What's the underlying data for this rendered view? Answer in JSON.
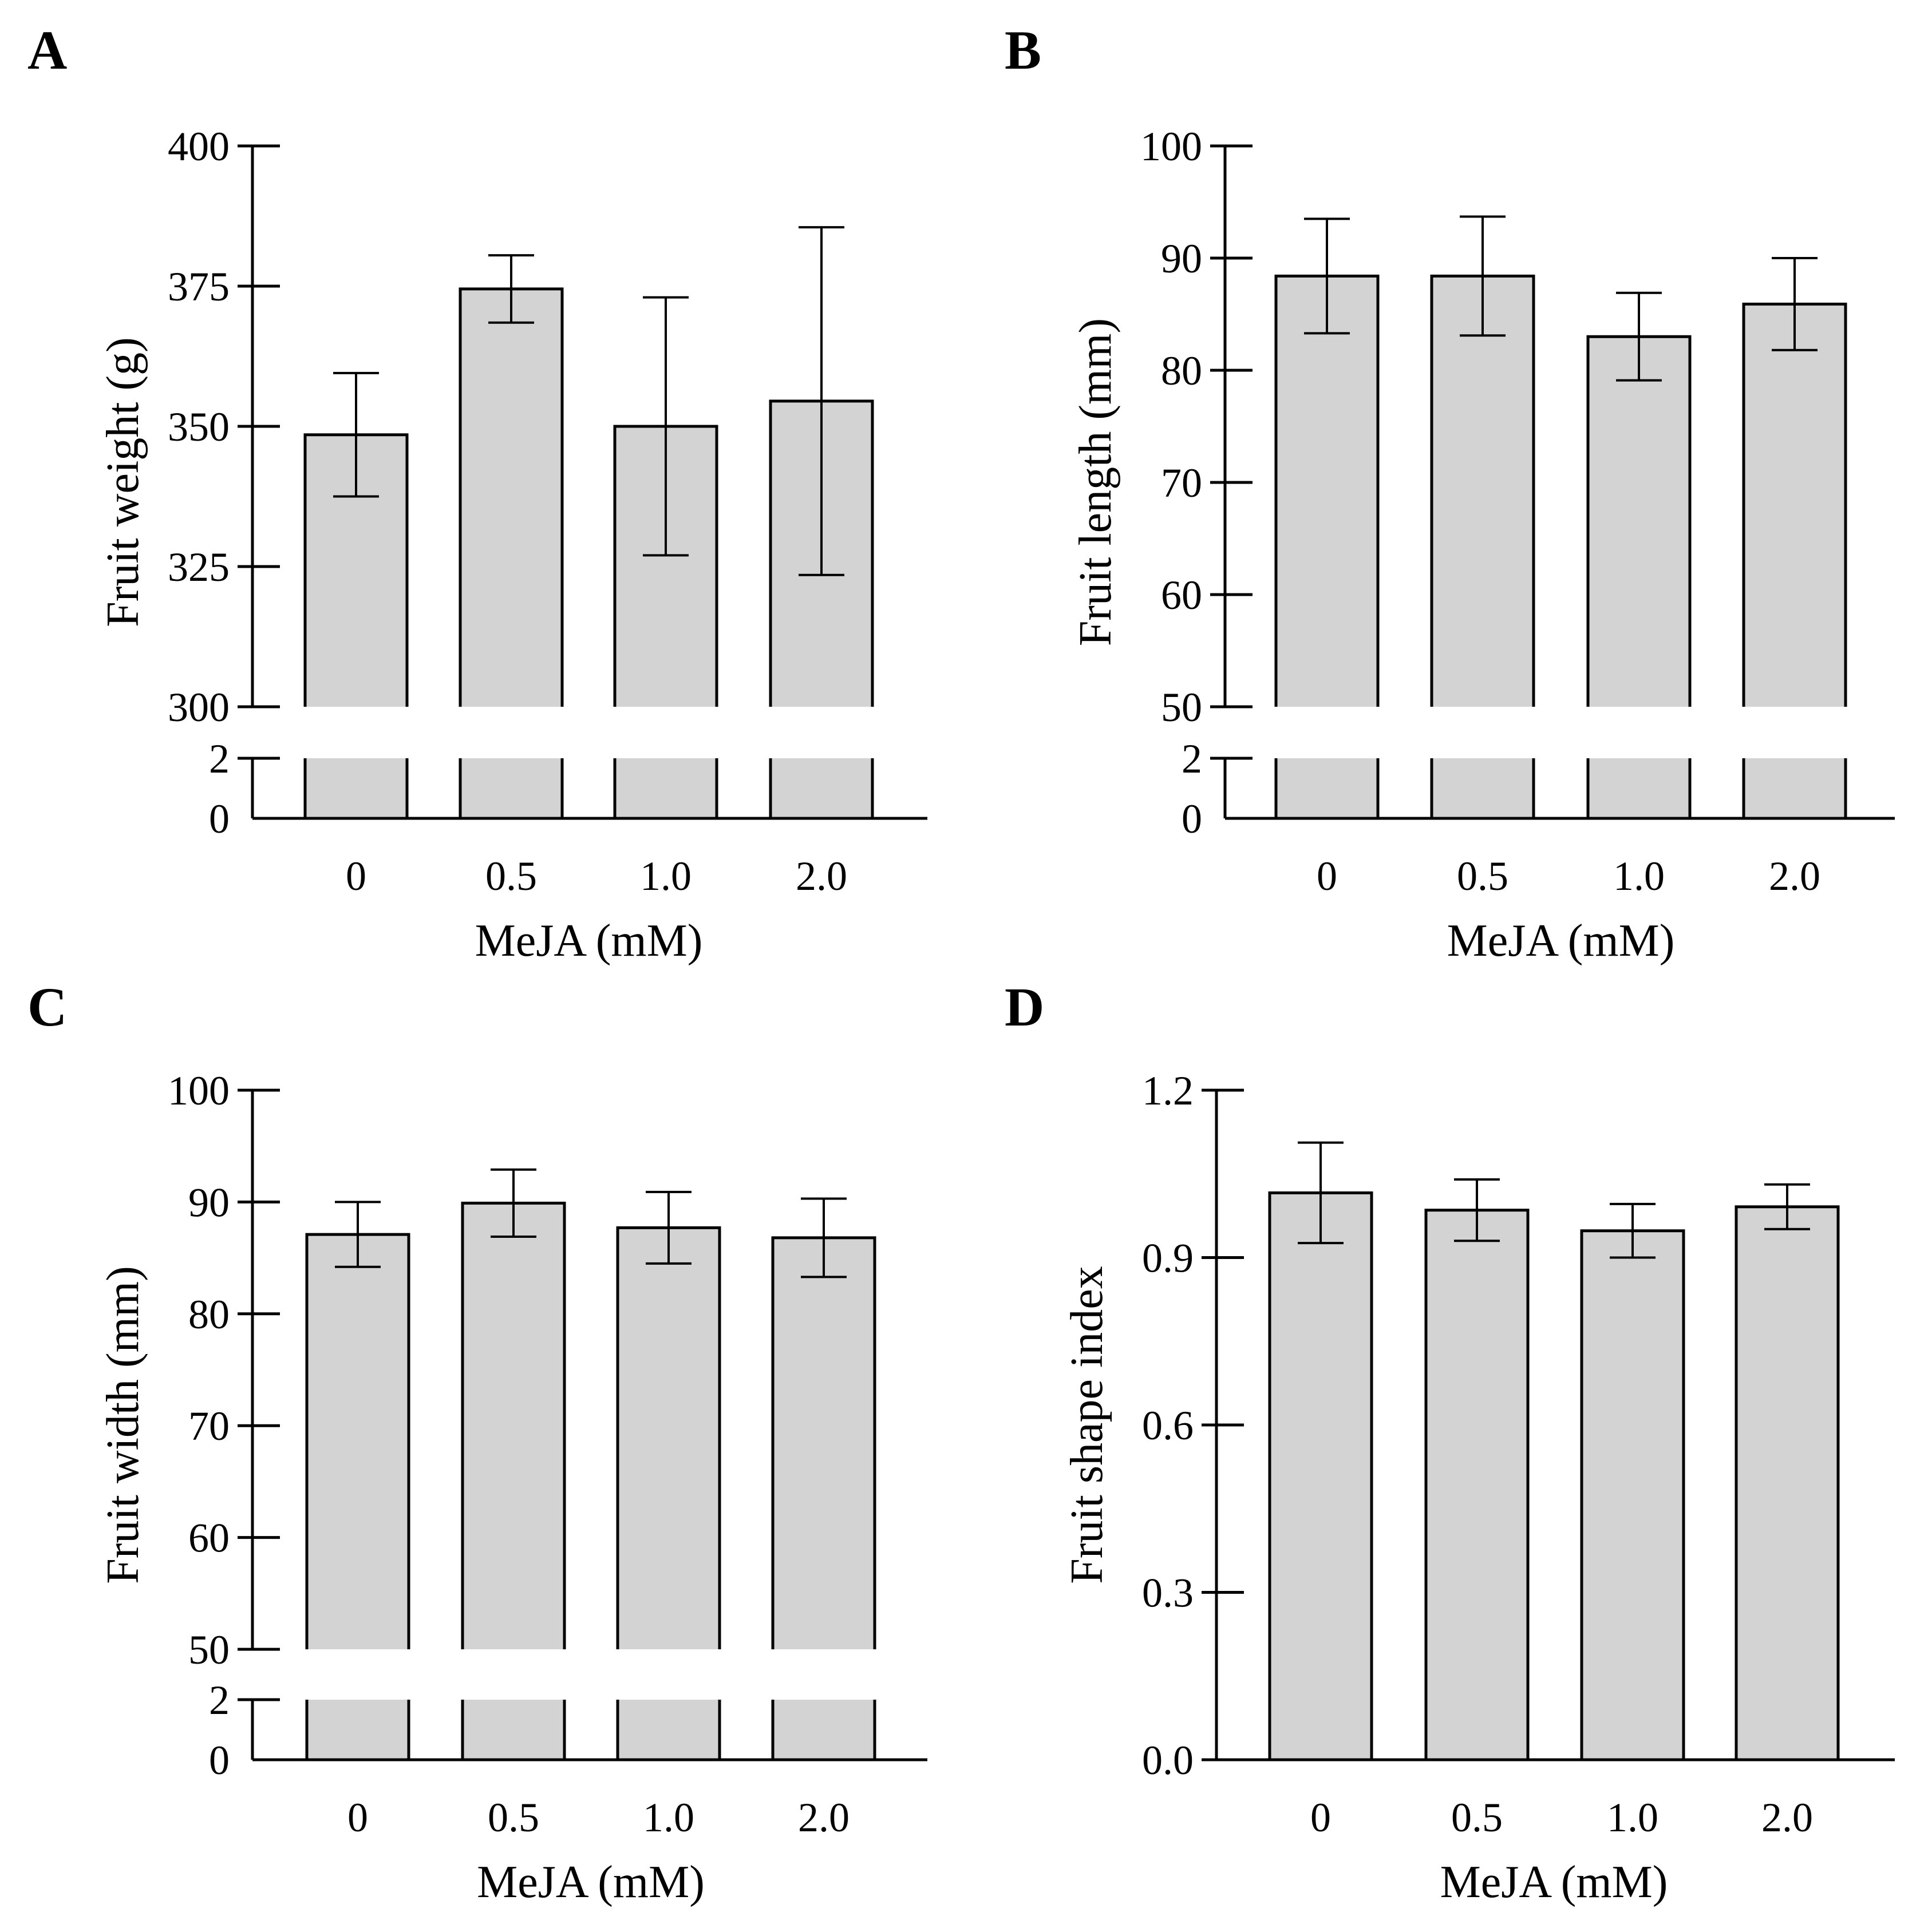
{
  "chart_data": [
    {
      "type": "bar",
      "panel_label": "A",
      "categories": [
        "0",
        "0.5",
        "1.0",
        "2.0"
      ],
      "values": [
        348.5,
        374.5,
        350.0,
        354.5
      ],
      "errors": [
        11.0,
        6.0,
        23.0,
        31.0
      ],
      "xlabel": "MeJA (mM)",
      "ylabel": "Fruit weight (g)",
      "ylim": [
        300,
        400
      ],
      "yticks": [
        "300",
        "325",
        "350",
        "375",
        "400"
      ],
      "broken_axis": true,
      "lower_ticks": [
        "0",
        "2"
      ],
      "bar_color": "#d3d3d3"
    },
    {
      "type": "bar",
      "panel_label": "B",
      "categories": [
        "0",
        "0.5",
        "1.0",
        "2.0"
      ],
      "values": [
        88.4,
        88.4,
        83.0,
        85.9
      ],
      "errors": [
        5.1,
        5.3,
        3.9,
        4.1
      ],
      "xlabel": "MeJA (mM)",
      "ylabel": "Fruit length (mm)",
      "ylim": [
        50,
        100
      ],
      "yticks": [
        "50",
        "60",
        "70",
        "80",
        "90",
        "100"
      ],
      "broken_axis": true,
      "lower_ticks": [
        "0",
        "2"
      ],
      "bar_color": "#d3d3d3"
    },
    {
      "type": "bar",
      "panel_label": "C",
      "categories": [
        "0",
        "0.5",
        "1.0",
        "2.0"
      ],
      "values": [
        87.1,
        89.9,
        87.7,
        86.8
      ],
      "errors": [
        2.9,
        3.0,
        3.2,
        3.5
      ],
      "xlabel": "MeJA (mM)",
      "ylabel": "Fruit width (mm)",
      "ylim": [
        50,
        100
      ],
      "yticks": [
        "50",
        "60",
        "70",
        "80",
        "90",
        "100"
      ],
      "broken_axis": true,
      "lower_ticks": [
        "0",
        "2"
      ],
      "bar_color": "#d3d3d3"
    },
    {
      "type": "bar",
      "panel_label": "D",
      "categories": [
        "0",
        "0.5",
        "1.0",
        "2.0"
      ],
      "values": [
        1.016,
        0.985,
        0.948,
        0.991
      ],
      "errors": [
        0.09,
        0.055,
        0.048,
        0.04
      ],
      "xlabel": "MeJA (mM)",
      "ylabel": "Fruit shape index",
      "ylim": [
        0,
        1.2
      ],
      "yticks": [
        "0.0",
        "0.3",
        "0.6",
        "0.9",
        "1.2"
      ],
      "broken_axis": false,
      "bar_color": "#d3d3d3"
    }
  ]
}
